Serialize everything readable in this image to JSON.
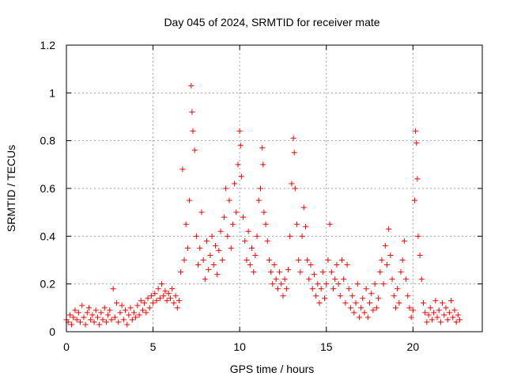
{
  "chart_data": {
    "type": "scatter",
    "title": "Day 045 of 2024, SRMTID for receiver mate",
    "xlabel": "GPS time / hours",
    "ylabel": "SRMTID / TECUs",
    "xlim": [
      0,
      24
    ],
    "ylim": [
      0,
      1.2
    ],
    "x_ticks": [
      0,
      5,
      10,
      15,
      20
    ],
    "x_tick_labels": [
      "0",
      "5",
      "10",
      "15",
      "20"
    ],
    "y_ticks": [
      0,
      0.2,
      0.4,
      0.6,
      0.8,
      1.0,
      1.2
    ],
    "y_tick_labels": [
      "0",
      "0.2",
      "0.4",
      "0.6",
      "0.8",
      "1",
      "1.2"
    ],
    "grid": true,
    "marker": "+",
    "color": "#ff0000",
    "series": [
      {
        "name": "SRMTID",
        "points": [
          [
            0.0,
            0.05
          ],
          [
            0.1,
            0.04
          ],
          [
            0.2,
            0.07
          ],
          [
            0.3,
            0.03
          ],
          [
            0.4,
            0.06
          ],
          [
            0.5,
            0.09
          ],
          [
            0.6,
            0.05
          ],
          [
            0.7,
            0.08
          ],
          [
            0.8,
            0.04
          ],
          [
            0.9,
            0.11
          ],
          [
            1.0,
            0.06
          ],
          [
            1.1,
            0.03
          ],
          [
            1.2,
            0.08
          ],
          [
            1.3,
            0.1
          ],
          [
            1.4,
            0.05
          ],
          [
            1.5,
            0.07
          ],
          [
            1.6,
            0.04
          ],
          [
            1.7,
            0.09
          ],
          [
            1.8,
            0.06
          ],
          [
            1.9,
            0.03
          ],
          [
            2.0,
            0.08
          ],
          [
            2.1,
            0.05
          ],
          [
            2.2,
            0.1
          ],
          [
            2.3,
            0.04
          ],
          [
            2.4,
            0.07
          ],
          [
            2.5,
            0.09
          ],
          [
            2.6,
            0.05
          ],
          [
            2.7,
            0.18
          ],
          [
            2.8,
            0.06
          ],
          [
            2.9,
            0.12
          ],
          [
            3.0,
            0.04
          ],
          [
            3.1,
            0.08
          ],
          [
            3.2,
            0.11
          ],
          [
            3.3,
            0.05
          ],
          [
            3.4,
            0.09
          ],
          [
            3.5,
            0.03
          ],
          [
            3.6,
            0.07
          ],
          [
            3.7,
            0.1
          ],
          [
            3.8,
            0.05
          ],
          [
            3.9,
            0.08
          ],
          [
            4.0,
            0.06
          ],
          [
            4.1,
            0.11
          ],
          [
            4.2,
            0.07
          ],
          [
            4.3,
            0.13
          ],
          [
            4.4,
            0.09
          ],
          [
            4.5,
            0.12
          ],
          [
            4.6,
            0.08
          ],
          [
            4.7,
            0.14
          ],
          [
            4.8,
            0.1
          ],
          [
            4.9,
            0.15
          ],
          [
            5.0,
            0.12
          ],
          [
            5.1,
            0.16
          ],
          [
            5.2,
            0.13
          ],
          [
            5.3,
            0.18
          ],
          [
            5.4,
            0.14
          ],
          [
            5.5,
            0.2
          ],
          [
            5.6,
            0.15
          ],
          [
            5.7,
            0.17
          ],
          [
            5.8,
            0.13
          ],
          [
            5.9,
            0.16
          ],
          [
            6.0,
            0.14
          ],
          [
            6.1,
            0.18
          ],
          [
            6.2,
            0.12
          ],
          [
            6.3,
            0.15
          ],
          [
            6.4,
            0.1
          ],
          [
            6.5,
            0.13
          ],
          [
            6.6,
            0.25
          ],
          [
            6.7,
            0.68
          ],
          [
            6.8,
            0.3
          ],
          [
            6.9,
            0.45
          ],
          [
            7.0,
            0.35
          ],
          [
            7.1,
            0.55
          ],
          [
            7.2,
            1.03
          ],
          [
            7.25,
            0.92
          ],
          [
            7.3,
            0.84
          ],
          [
            7.4,
            0.76
          ],
          [
            7.5,
            0.4
          ],
          [
            7.6,
            0.28
          ],
          [
            7.7,
            0.35
          ],
          [
            7.8,
            0.5
          ],
          [
            7.9,
            0.3
          ],
          [
            8.0,
            0.22
          ],
          [
            8.1,
            0.38
          ],
          [
            8.2,
            0.26
          ],
          [
            8.3,
            0.32
          ],
          [
            8.4,
            0.4
          ],
          [
            8.5,
            0.28
          ],
          [
            8.6,
            0.36
          ],
          [
            8.7,
            0.24
          ],
          [
            8.8,
            0.34
          ],
          [
            8.9,
            0.42
          ],
          [
            9.0,
            0.3
          ],
          [
            9.1,
            0.48
          ],
          [
            9.2,
            0.6
          ],
          [
            9.3,
            0.4
          ],
          [
            9.4,
            0.55
          ],
          [
            9.5,
            0.35
          ],
          [
            9.6,
            0.45
          ],
          [
            9.7,
            0.62
          ],
          [
            9.8,
            0.5
          ],
          [
            9.9,
            0.7
          ],
          [
            10.0,
            0.84
          ],
          [
            10.05,
            0.78
          ],
          [
            10.1,
            0.65
          ],
          [
            10.2,
            0.48
          ],
          [
            10.3,
            0.38
          ],
          [
            10.4,
            0.3
          ],
          [
            10.5,
            0.42
          ],
          [
            10.6,
            0.28
          ],
          [
            10.7,
            0.35
          ],
          [
            10.8,
            0.25
          ],
          [
            10.9,
            0.32
          ],
          [
            11.0,
            0.4
          ],
          [
            11.1,
            0.55
          ],
          [
            11.2,
            0.6
          ],
          [
            11.3,
            0.77
          ],
          [
            11.35,
            0.7
          ],
          [
            11.4,
            0.5
          ],
          [
            11.5,
            0.45
          ],
          [
            11.6,
            0.38
          ],
          [
            11.7,
            0.3
          ],
          [
            11.8,
            0.25
          ],
          [
            11.9,
            0.2
          ],
          [
            12.0,
            0.28
          ],
          [
            12.1,
            0.22
          ],
          [
            12.2,
            0.18
          ],
          [
            12.3,
            0.25
          ],
          [
            12.4,
            0.2
          ],
          [
            12.5,
            0.15
          ],
          [
            12.6,
            0.22
          ],
          [
            12.7,
            0.18
          ],
          [
            12.8,
            0.26
          ],
          [
            12.9,
            0.4
          ],
          [
            13.0,
            0.62
          ],
          [
            13.1,
            0.81
          ],
          [
            13.15,
            0.75
          ],
          [
            13.2,
            0.6
          ],
          [
            13.3,
            0.45
          ],
          [
            13.4,
            0.3
          ],
          [
            13.5,
            0.25
          ],
          [
            13.6,
            0.4
          ],
          [
            13.7,
            0.52
          ],
          [
            13.8,
            0.44
          ],
          [
            13.9,
            0.3
          ],
          [
            14.0,
            0.22
          ],
          [
            14.1,
            0.28
          ],
          [
            14.2,
            0.18
          ],
          [
            14.3,
            0.24
          ],
          [
            14.4,
            0.15
          ],
          [
            14.5,
            0.2
          ],
          [
            14.6,
            0.12
          ],
          [
            14.7,
            0.18
          ],
          [
            14.8,
            0.25
          ],
          [
            14.9,
            0.14
          ],
          [
            15.0,
            0.2
          ],
          [
            15.1,
            0.3
          ],
          [
            15.2,
            0.45
          ],
          [
            15.3,
            0.25
          ],
          [
            15.4,
            0.18
          ],
          [
            15.5,
            0.22
          ],
          [
            15.6,
            0.28
          ],
          [
            15.7,
            0.2
          ],
          [
            15.8,
            0.15
          ],
          [
            15.9,
            0.3
          ],
          [
            16.0,
            0.22
          ],
          [
            16.1,
            0.12
          ],
          [
            16.2,
            0.28
          ],
          [
            16.3,
            0.18
          ],
          [
            16.4,
            0.1
          ],
          [
            16.5,
            0.15
          ],
          [
            16.6,
            0.08
          ],
          [
            16.7,
            0.12
          ],
          [
            16.8,
            0.2
          ],
          [
            16.9,
            0.06
          ],
          [
            17.0,
            0.1
          ],
          [
            17.1,
            0.14
          ],
          [
            17.2,
            0.08
          ],
          [
            17.3,
            0.18
          ],
          [
            17.4,
            0.06
          ],
          [
            17.5,
            0.12
          ],
          [
            17.6,
            0.16
          ],
          [
            17.7,
            0.09
          ],
          [
            17.8,
            0.2
          ],
          [
            17.9,
            0.1
          ],
          [
            18.0,
            0.14
          ],
          [
            18.1,
            0.25
          ],
          [
            18.2,
            0.3
          ],
          [
            18.3,
            0.2
          ],
          [
            18.4,
            0.36
          ],
          [
            18.5,
            0.28
          ],
          [
            18.6,
            0.43
          ],
          [
            18.7,
            0.32
          ],
          [
            18.8,
            0.22
          ],
          [
            18.9,
            0.15
          ],
          [
            19.0,
            0.1
          ],
          [
            19.1,
            0.18
          ],
          [
            19.2,
            0.12
          ],
          [
            19.3,
            0.25
          ],
          [
            19.4,
            0.3
          ],
          [
            19.5,
            0.38
          ],
          [
            19.6,
            0.22
          ],
          [
            19.7,
            0.15
          ],
          [
            19.8,
            0.1
          ],
          [
            19.9,
            0.06
          ],
          [
            20.0,
            0.09
          ],
          [
            20.1,
            0.55
          ],
          [
            20.15,
            0.84
          ],
          [
            20.2,
            0.79
          ],
          [
            20.25,
            0.64
          ],
          [
            20.3,
            0.4
          ],
          [
            20.4,
            0.32
          ],
          [
            20.5,
            0.22
          ],
          [
            20.6,
            0.12
          ],
          [
            20.7,
            0.08
          ],
          [
            20.8,
            0.04
          ],
          [
            20.9,
            0.07
          ],
          [
            21.0,
            0.1
          ],
          [
            21.1,
            0.05
          ],
          [
            21.2,
            0.08
          ],
          [
            21.3,
            0.13
          ],
          [
            21.4,
            0.06
          ],
          [
            21.5,
            0.09
          ],
          [
            21.6,
            0.04
          ],
          [
            21.7,
            0.12
          ],
          [
            21.8,
            0.07
          ],
          [
            21.9,
            0.1
          ],
          [
            22.0,
            0.05
          ],
          [
            22.1,
            0.08
          ],
          [
            22.2,
            0.13
          ],
          [
            22.3,
            0.06
          ],
          [
            22.4,
            0.09
          ],
          [
            22.5,
            0.04
          ],
          [
            22.6,
            0.07
          ],
          [
            22.7,
            0.05
          ]
        ]
      }
    ]
  }
}
